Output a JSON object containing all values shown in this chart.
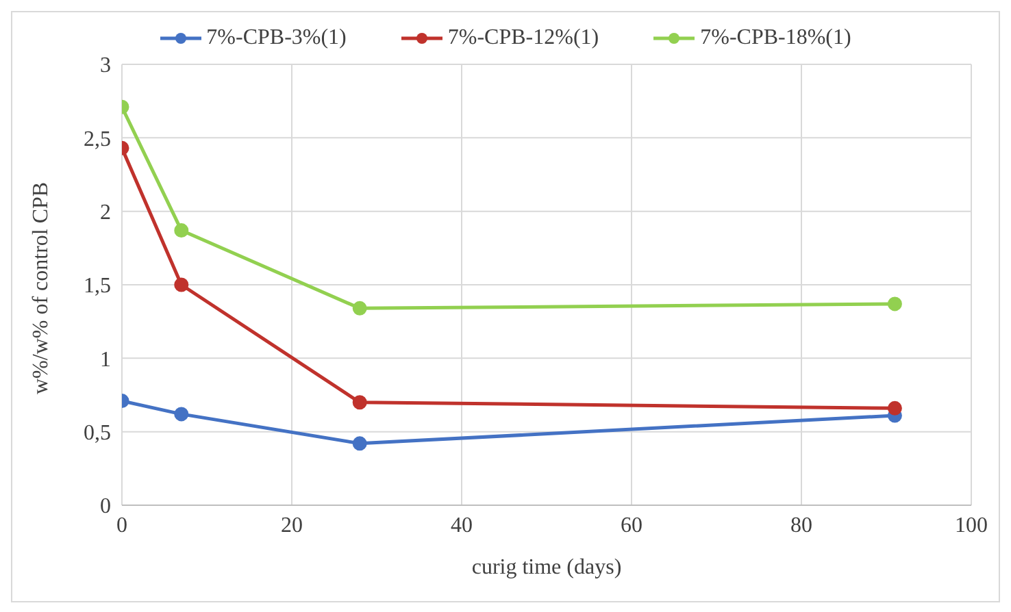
{
  "chart_data": {
    "type": "line",
    "xlabel": "curig time (days)",
    "ylabel": "w%/w% of control CPB",
    "x": [
      0,
      7,
      28,
      91
    ],
    "series": [
      {
        "name": "7%-CPB-3%(1)",
        "color": "#4472c4",
        "values": [
          0.71,
          0.62,
          0.42,
          0.61
        ]
      },
      {
        "name": "7%-CPB-12%(1)",
        "color": "#c0322c",
        "values": [
          2.43,
          1.5,
          0.7,
          0.66
        ]
      },
      {
        "name": "7%-CPB-18%(1)",
        "color": "#92d050",
        "values": [
          2.71,
          1.87,
          1.34,
          1.37
        ]
      }
    ],
    "xlim": [
      0,
      100
    ],
    "xticks": [
      0,
      20,
      40,
      60,
      80,
      100
    ],
    "ylim": [
      0,
      3
    ],
    "yticks": [
      0,
      {
        "value": 0.5,
        "label": "0,5"
      },
      1,
      {
        "value": 1.5,
        "label": "1,5"
      },
      2,
      {
        "value": 2.5,
        "label": "2,5"
      },
      3
    ],
    "grid": true,
    "legend": "top",
    "marker": "circle",
    "line_style": "solid"
  }
}
